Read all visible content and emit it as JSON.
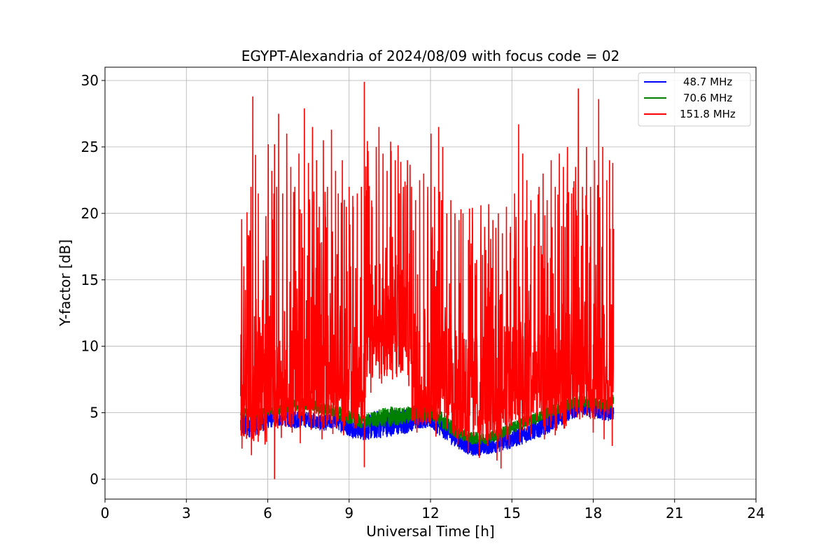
{
  "chart_data": {
    "type": "line",
    "title": "EGYPT-Alexandria of 2024/08/09 with focus code = 02",
    "xlabel": "Universal Time [h]",
    "ylabel": "Y-factor [dB]",
    "xlim": [
      0,
      24
    ],
    "ylim": [
      -1.5,
      31
    ],
    "xticks": [
      0,
      3,
      6,
      9,
      12,
      15,
      18,
      21,
      24
    ],
    "xtick_labels": [
      "0",
      "3",
      "6",
      "9",
      "12",
      "15",
      "18",
      "21",
      "24"
    ],
    "yticks": [
      0,
      5,
      10,
      15,
      20,
      25,
      30
    ],
    "ytick_labels": [
      "0",
      "5",
      "10",
      "15",
      "20",
      "25",
      "30"
    ],
    "grid": true,
    "legend_position": "top-right",
    "series": [
      {
        "name": "48.7 MHz",
        "color": "#0000ff",
        "x": [
          5.0,
          5.5,
          6.0,
          6.5,
          7.0,
          7.5,
          8.0,
          8.5,
          9.0,
          9.5,
          10.0,
          10.5,
          11.0,
          11.5,
          12.0,
          12.5,
          13.0,
          13.5,
          14.0,
          14.5,
          15.0,
          15.5,
          16.0,
          16.5,
          17.0,
          17.5,
          18.0,
          18.5,
          18.75
        ],
        "y_low": [
          3.0,
          3.2,
          3.8,
          4.0,
          3.8,
          3.9,
          3.6,
          3.8,
          3.2,
          2.9,
          3.0,
          3.2,
          3.3,
          3.8,
          3.8,
          3.0,
          2.3,
          1.7,
          1.8,
          2.0,
          2.3,
          2.7,
          3.1,
          3.6,
          4.2,
          4.8,
          4.6,
          4.3,
          4.4
        ],
        "y_high": [
          5.2,
          5.0,
          5.3,
          5.0,
          5.2,
          5.1,
          4.8,
          5.0,
          4.7,
          4.5,
          5.2,
          5.3,
          5.2,
          5.6,
          5.2,
          4.5,
          3.6,
          3.0,
          3.1,
          3.4,
          3.8,
          4.1,
          4.6,
          5.2,
          5.6,
          6.0,
          5.8,
          5.6,
          5.8
        ]
      },
      {
        "name": "70.6 MHz",
        "color": "#008000",
        "x": [
          5.0,
          5.5,
          6.0,
          6.5,
          7.0,
          7.5,
          8.0,
          8.5,
          9.0,
          9.5,
          10.0,
          10.5,
          11.0,
          11.5,
          12.0,
          12.5,
          13.0,
          13.5,
          14.0,
          14.5,
          15.0,
          15.5,
          16.0,
          16.5,
          17.0,
          17.5,
          18.0,
          18.5,
          18.75
        ],
        "y_low": [
          4.6,
          4.6,
          4.8,
          4.9,
          5.1,
          5.2,
          4.8,
          4.6,
          4.1,
          3.8,
          3.9,
          3.9,
          4.1,
          4.4,
          4.4,
          3.7,
          3.0,
          2.6,
          2.6,
          2.9,
          3.4,
          3.9,
          4.3,
          4.7,
          5.1,
          5.4,
          5.3,
          5.2,
          5.4
        ],
        "y_high": [
          5.4,
          5.3,
          5.4,
          5.6,
          6.0,
          6.2,
          5.8,
          5.6,
          5.2,
          4.8,
          5.2,
          5.5,
          5.4,
          5.8,
          5.7,
          5.0,
          4.0,
          3.6,
          3.5,
          3.8,
          4.3,
          4.8,
          5.1,
          5.6,
          6.0,
          6.3,
          6.2,
          6.0,
          6.5
        ]
      },
      {
        "name": "151.8 MHz",
        "color": "#ff0000",
        "peaks": [
          [
            5.02,
            9.1
          ],
          [
            5.15,
            7.2
          ],
          [
            5.3,
            16.0
          ],
          [
            5.38,
            22.0
          ],
          [
            5.45,
            28.8
          ],
          [
            5.55,
            24.4
          ],
          [
            5.65,
            21.5
          ],
          [
            5.8,
            12.0
          ],
          [
            5.93,
            19.8
          ],
          [
            6.02,
            25.2
          ],
          [
            6.15,
            23.2
          ],
          [
            6.25,
            25.2
          ],
          [
            6.33,
            22.0
          ],
          [
            6.4,
            27.5
          ],
          [
            6.55,
            21.5
          ],
          [
            6.7,
            26.0
          ],
          [
            6.85,
            23.5
          ],
          [
            7.0,
            22.0
          ],
          [
            7.15,
            24.5
          ],
          [
            7.25,
            20.0
          ],
          [
            7.35,
            27.9
          ],
          [
            7.5,
            23.8
          ],
          [
            7.65,
            26.5
          ],
          [
            7.8,
            24.0
          ],
          [
            7.9,
            20.5
          ],
          [
            8.05,
            25.5
          ],
          [
            8.2,
            22.0
          ],
          [
            8.35,
            26.3
          ],
          [
            8.5,
            23.2
          ],
          [
            8.6,
            21.5
          ],
          [
            8.75,
            24.0
          ],
          [
            8.9,
            20.5
          ],
          [
            9.0,
            22.0
          ],
          [
            9.15,
            20.5
          ],
          [
            9.3,
            21.5
          ],
          [
            9.45,
            22.0
          ],
          [
            9.56,
            29.9
          ],
          [
            9.7,
            24.7
          ],
          [
            9.85,
            20.5
          ],
          [
            10.0,
            25.0
          ],
          [
            10.1,
            26.5
          ],
          [
            10.25,
            24.5
          ],
          [
            10.4,
            23.2
          ],
          [
            10.55,
            24.7
          ],
          [
            10.7,
            24.0
          ],
          [
            10.85,
            21.5
          ],
          [
            11.0,
            22.0
          ],
          [
            11.15,
            24.0
          ],
          [
            11.3,
            22.0
          ],
          [
            11.45,
            21.0
          ],
          [
            11.6,
            22.5
          ],
          [
            11.75,
            23.0
          ],
          [
            11.9,
            22.0
          ],
          [
            12.02,
            26.0
          ],
          [
            12.15,
            22.0
          ],
          [
            12.3,
            26.5
          ],
          [
            12.45,
            25.0
          ],
          [
            12.6,
            20.0
          ],
          [
            12.75,
            21.0
          ],
          [
            12.9,
            20.0
          ],
          [
            13.05,
            19.5
          ],
          [
            13.2,
            20.0
          ],
          [
            13.4,
            18.0
          ],
          [
            13.55,
            19.0
          ],
          [
            13.7,
            16.5
          ],
          [
            13.85,
            16.0
          ],
          [
            14.0,
            17.5
          ],
          [
            14.15,
            17.5
          ],
          [
            14.3,
            19.5
          ],
          [
            14.5,
            20.0
          ],
          [
            14.65,
            18.5
          ],
          [
            14.8,
            20.5
          ],
          [
            14.95,
            19.0
          ],
          [
            15.1,
            21.5
          ],
          [
            15.25,
            26.7
          ],
          [
            15.4,
            24.5
          ],
          [
            15.55,
            22.5
          ],
          [
            15.7,
            21.0
          ],
          [
            15.85,
            20.0
          ],
          [
            16.0,
            22.0
          ],
          [
            16.15,
            23.0
          ],
          [
            16.3,
            21.0
          ],
          [
            16.45,
            24.0
          ],
          [
            16.6,
            22.0
          ],
          [
            16.75,
            24.5
          ],
          [
            16.9,
            23.5
          ],
          [
            17.05,
            25.0
          ],
          [
            17.2,
            21.5
          ],
          [
            17.35,
            23.5
          ],
          [
            17.45,
            29.4
          ],
          [
            17.6,
            22.0
          ],
          [
            17.75,
            25.0
          ],
          [
            17.9,
            22.0
          ],
          [
            18.05,
            24.0
          ],
          [
            18.2,
            28.6
          ],
          [
            18.35,
            25.0
          ],
          [
            18.5,
            22.5
          ],
          [
            18.6,
            24.0
          ],
          [
            18.72,
            23.8
          ]
        ],
        "troughs": [
          [
            5.05,
            2.3
          ],
          [
            5.4,
            1.8
          ],
          [
            5.9,
            2.6
          ],
          [
            6.25,
            0.0
          ],
          [
            6.5,
            3.1
          ],
          [
            6.9,
            3.5
          ],
          [
            7.2,
            2.7
          ],
          [
            7.6,
            3.7
          ],
          [
            8.0,
            3.0
          ],
          [
            8.4,
            3.4
          ],
          [
            8.8,
            3.3
          ],
          [
            9.3,
            4.2
          ],
          [
            9.56,
            0.9
          ],
          [
            9.8,
            6.5
          ],
          [
            10.2,
            7.2
          ],
          [
            10.6,
            7.5
          ],
          [
            10.9,
            8.0
          ],
          [
            11.2,
            7.0
          ],
          [
            11.5,
            3.5
          ],
          [
            11.8,
            5.0
          ],
          [
            12.2,
            3.2
          ],
          [
            12.6,
            3.8
          ],
          [
            13.0,
            2.6
          ],
          [
            13.4,
            2.0
          ],
          [
            13.8,
            1.6
          ],
          [
            14.1,
            2.5
          ],
          [
            14.45,
            1.4
          ],
          [
            14.6,
            0.8
          ],
          [
            14.9,
            2.5
          ],
          [
            15.3,
            2.8
          ],
          [
            15.7,
            3.2
          ],
          [
            16.2,
            3.0
          ],
          [
            16.6,
            3.3
          ],
          [
            17.0,
            4.0
          ],
          [
            17.5,
            4.5
          ],
          [
            18.0,
            3.5
          ],
          [
            18.4,
            3.0
          ],
          [
            18.7,
            2.5
          ]
        ]
      }
    ]
  }
}
